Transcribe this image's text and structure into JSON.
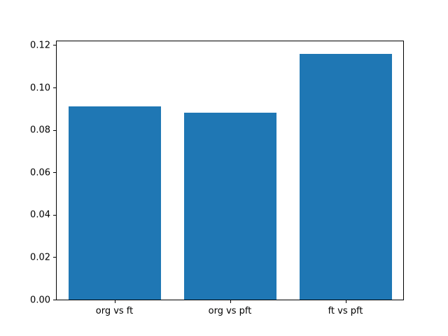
{
  "figure": {
    "background": "#ffffff",
    "axes_edge_color": "#000000",
    "tick_color": "#000000"
  },
  "chart_data": {
    "type": "bar",
    "title": "",
    "xlabel": "",
    "ylabel": "",
    "categories": [
      "org vs ft",
      "org vs pft",
      "ft vs pft"
    ],
    "values": [
      0.091,
      0.088,
      0.116
    ],
    "bar_color": "#1f77b4",
    "bar_width_fraction": 0.8,
    "ylim": [
      0,
      0.1218
    ],
    "yticks": [
      0.0,
      0.02,
      0.04,
      0.06,
      0.08,
      0.1,
      0.12
    ],
    "ytick_labels": [
      "0.00",
      "0.02",
      "0.04",
      "0.06",
      "0.08",
      "0.10",
      "0.12"
    ],
    "grid": false,
    "legend": null
  }
}
